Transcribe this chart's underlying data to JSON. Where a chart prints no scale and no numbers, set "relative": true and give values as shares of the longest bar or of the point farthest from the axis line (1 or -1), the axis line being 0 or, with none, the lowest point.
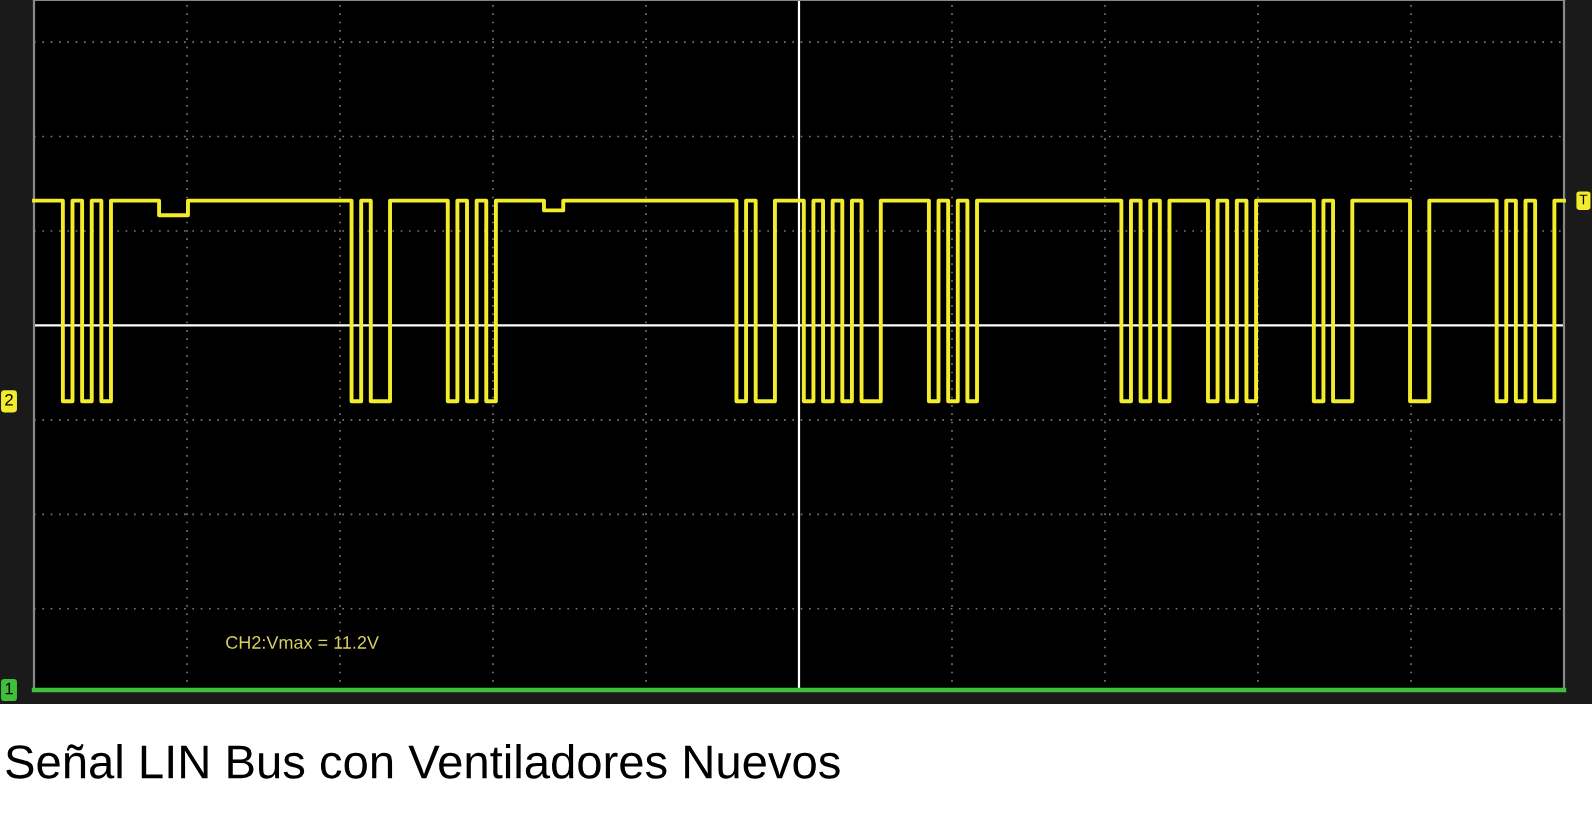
{
  "chart_data": {
    "type": "line",
    "relative": true,
    "grid": true,
    "title": "Señal LIN Bus con Ventiladores Nuevos",
    "annotations": [
      "CH2:Vmax = 11.2V",
      "T"
    ],
    "ref_lines": [
      {
        "axis": "y",
        "value": 0.745,
        "color": "#ffffff"
      }
    ],
    "categories": [
      null,
      null,
      null,
      null,
      null,
      null,
      null,
      null,
      null,
      null,
      null,
      null,
      null,
      null,
      null,
      null,
      null,
      null,
      null,
      null,
      null,
      null,
      null,
      null,
      null,
      null,
      null,
      null,
      null,
      null,
      null,
      null,
      null,
      null,
      null,
      null,
      null,
      null,
      null,
      null,
      null,
      null,
      null,
      null,
      null,
      null,
      null,
      null,
      null,
      null,
      null,
      null,
      null,
      null,
      null,
      null,
      null,
      null,
      null,
      null,
      null,
      null,
      null,
      null,
      null,
      null,
      null,
      null,
      null,
      null,
      null,
      null,
      null,
      null,
      null,
      null,
      null,
      null,
      null,
      null,
      null,
      null,
      null,
      null,
      null,
      null,
      null,
      null,
      null,
      null,
      null,
      null,
      null,
      null,
      null,
      null,
      null,
      null,
      null,
      null,
      null,
      null,
      null,
      null,
      null,
      null,
      null,
      null,
      null,
      null,
      null,
      null,
      null,
      null,
      null,
      null,
      null,
      null,
      null,
      null,
      null,
      null,
      null,
      null,
      null,
      null,
      null,
      null,
      null,
      null,
      null,
      null,
      null,
      null,
      null,
      null,
      null,
      null,
      null,
      null,
      null,
      null,
      null,
      null,
      null,
      null,
      null,
      null,
      null,
      null,
      null,
      null,
      null,
      null,
      null,
      null,
      null,
      null,
      null,
      null
    ],
    "series": [
      {
        "name": "2",
        "type": "step",
        "color": "#f2ec2c",
        "values": [
          1,
          1,
          1,
          0.59,
          1,
          0.59,
          1,
          0.59,
          1,
          1,
          1,
          1,
          1,
          0.97,
          0.97,
          0.97,
          1,
          1,
          1,
          1,
          1,
          1,
          1,
          1,
          1,
          1,
          1,
          1,
          1,
          1,
          1,
          1,
          1,
          0.59,
          1,
          0.59,
          0.59,
          1,
          1,
          1,
          1,
          1,
          1,
          0.59,
          1,
          0.59,
          1,
          0.59,
          1,
          1,
          1,
          1,
          1,
          0.98,
          0.98,
          1,
          1,
          1,
          1,
          1,
          1,
          1,
          1,
          1,
          1,
          1,
          1,
          1,
          1,
          1,
          1,
          1,
          1,
          0.59,
          1,
          0.59,
          0.59,
          1,
          1,
          1,
          0.59,
          1,
          0.59,
          1,
          0.59,
          1,
          0.59,
          0.59,
          1,
          1,
          1,
          1,
          1,
          0.59,
          1,
          0.59,
          1,
          0.59,
          1,
          1,
          1,
          1,
          1,
          1,
          1,
          1,
          1,
          1,
          1,
          1,
          1,
          1,
          1,
          0.59,
          1,
          0.59,
          1,
          0.59,
          1,
          1,
          1,
          1,
          0.59,
          1,
          0.59,
          1,
          0.59,
          1,
          1,
          1,
          1,
          1,
          1,
          0.59,
          1,
          0.59,
          0.59,
          1,
          1,
          1,
          1,
          1,
          1,
          0.59,
          0.59,
          1,
          1,
          1,
          1,
          1,
          1,
          1,
          0.59,
          1,
          0.59,
          1,
          0.59,
          0.59,
          1,
          1
        ]
      },
      {
        "name": "1",
        "color": "#3fbf3a",
        "values": [
          0,
          0,
          0,
          0,
          0,
          0,
          0,
          0,
          0,
          0,
          0,
          0,
          0,
          0,
          0,
          0,
          0,
          0,
          0,
          0,
          0,
          0,
          0,
          0,
          0,
          0,
          0,
          0,
          0,
          0,
          0,
          0,
          0,
          0,
          0,
          0,
          0,
          0,
          0,
          0,
          0,
          0,
          0,
          0,
          0,
          0,
          0,
          0,
          0,
          0,
          0,
          0,
          0,
          0,
          0,
          0,
          0,
          0,
          0,
          0,
          0,
          0,
          0,
          0,
          0,
          0,
          0,
          0,
          0,
          0,
          0,
          0,
          0,
          0,
          0,
          0,
          0,
          0,
          0,
          0,
          0,
          0,
          0,
          0,
          0,
          0,
          0,
          0,
          0,
          0,
          0,
          0,
          0,
          0,
          0,
          0,
          0,
          0,
          0,
          0,
          0,
          0,
          0,
          0,
          0,
          0,
          0,
          0,
          0,
          0,
          0,
          0,
          0,
          0,
          0,
          0,
          0,
          0,
          0,
          0,
          0,
          0,
          0,
          0,
          0,
          0,
          0,
          0,
          0,
          0,
          0,
          0,
          0,
          0,
          0,
          0,
          0,
          0,
          0,
          0,
          0,
          0,
          0,
          0,
          0,
          0,
          0,
          0,
          0,
          0,
          0,
          0,
          0,
          0,
          0,
          0,
          0,
          0,
          0,
          0
        ]
      }
    ]
  }
}
